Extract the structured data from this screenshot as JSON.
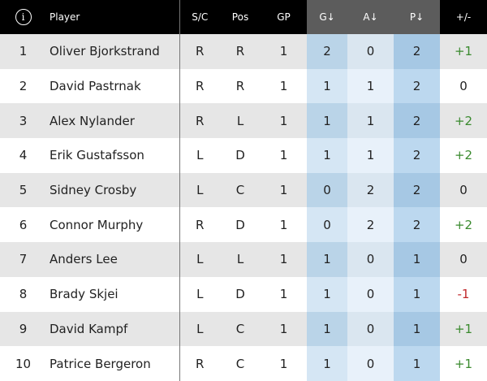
{
  "header": {
    "info_icon": "info-circle-icon",
    "info_label": "i",
    "player": "Player",
    "sc": "S/C",
    "pos": "Pos",
    "gp": "GP",
    "g": "G↓",
    "a": "A↓",
    "p": "P↓",
    "pm": "+/-"
  },
  "colors": {
    "header": "#000000",
    "sorted_header": "#5c5c5c",
    "positive": "#3a8a2e",
    "negative": "#c0282b"
  },
  "rows": [
    {
      "rank": "1",
      "player": "Oliver Bjorkstrand",
      "sc": "R",
      "pos": "R",
      "gp": "1",
      "g": "2",
      "a": "0",
      "p": "2",
      "pm": "+1"
    },
    {
      "rank": "2",
      "player": "David Pastrnak",
      "sc": "R",
      "pos": "R",
      "gp": "1",
      "g": "1",
      "a": "1",
      "p": "2",
      "pm": "0"
    },
    {
      "rank": "3",
      "player": "Alex Nylander",
      "sc": "R",
      "pos": "L",
      "gp": "1",
      "g": "1",
      "a": "1",
      "p": "2",
      "pm": "+2"
    },
    {
      "rank": "4",
      "player": "Erik Gustafsson",
      "sc": "L",
      "pos": "D",
      "gp": "1",
      "g": "1",
      "a": "1",
      "p": "2",
      "pm": "+2"
    },
    {
      "rank": "5",
      "player": "Sidney Crosby",
      "sc": "L",
      "pos": "C",
      "gp": "1",
      "g": "0",
      "a": "2",
      "p": "2",
      "pm": "0"
    },
    {
      "rank": "6",
      "player": "Connor Murphy",
      "sc": "R",
      "pos": "D",
      "gp": "1",
      "g": "0",
      "a": "2",
      "p": "2",
      "pm": "+2"
    },
    {
      "rank": "7",
      "player": "Anders Lee",
      "sc": "L",
      "pos": "L",
      "gp": "1",
      "g": "1",
      "a": "0",
      "p": "1",
      "pm": "0"
    },
    {
      "rank": "8",
      "player": "Brady Skjei",
      "sc": "L",
      "pos": "D",
      "gp": "1",
      "g": "1",
      "a": "0",
      "p": "1",
      "pm": "-1"
    },
    {
      "rank": "9",
      "player": "David Kampf",
      "sc": "L",
      "pos": "C",
      "gp": "1",
      "g": "1",
      "a": "0",
      "p": "1",
      "pm": "+1"
    },
    {
      "rank": "10",
      "player": "Patrice Bergeron",
      "sc": "R",
      "pos": "C",
      "gp": "1",
      "g": "1",
      "a": "0",
      "p": "1",
      "pm": "+1"
    }
  ]
}
